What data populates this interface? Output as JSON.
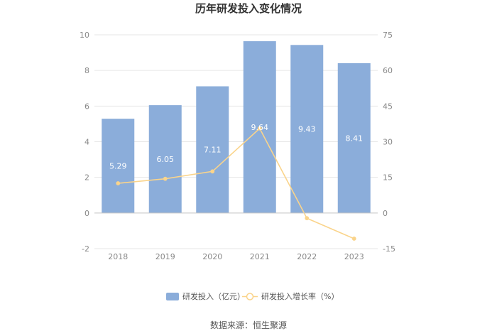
{
  "chart_data": {
    "type": "bar",
    "title": "历年研发投入变化情况",
    "categories": [
      "2018",
      "2019",
      "2020",
      "2021",
      "2022",
      "2023"
    ],
    "series": [
      {
        "name": "研发投入（亿元）",
        "type": "bar",
        "axis": "left",
        "color": "#8badda",
        "values": [
          5.29,
          6.05,
          7.11,
          9.64,
          9.43,
          8.41
        ],
        "labels": [
          "5.29",
          "6.05",
          "7.11",
          "9.64",
          "9.43",
          "8.41"
        ]
      },
      {
        "name": "研发投入增长率（%）",
        "type": "line",
        "axis": "right",
        "color": "#fad48b",
        "values": [
          12.5,
          14.4,
          17.5,
          35.6,
          -2.2,
          -10.8
        ]
      }
    ],
    "y_left": {
      "ticks": [
        "10",
        "8",
        "6",
        "4",
        "2",
        "0",
        "-2"
      ],
      "range": [
        -2,
        10
      ]
    },
    "y_right": {
      "ticks": [
        "75",
        "60",
        "45",
        "30",
        "15",
        "0",
        "-15"
      ],
      "range": [
        -15,
        75
      ]
    },
    "grid": true,
    "legend_position": "bottom"
  },
  "source": "数据来源：恒生聚源"
}
